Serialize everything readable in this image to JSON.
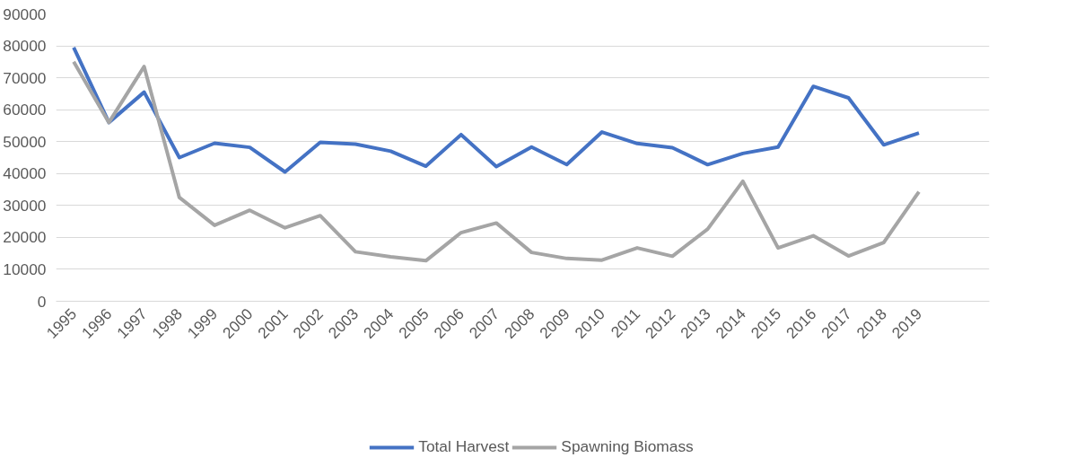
{
  "chart_data": {
    "type": "line",
    "categories": [
      "1995",
      "1996",
      "1997",
      "1998",
      "1999",
      "2000",
      "2001",
      "2002",
      "2003",
      "2004",
      "2005",
      "2006",
      "2007",
      "2008",
      "2009",
      "2010",
      "2011",
      "2012",
      "2013",
      "2014",
      "2015",
      "2016",
      "2017",
      "2018",
      "2019"
    ],
    "series": [
      {
        "name": "Total Harvest",
        "color": "#4472c4",
        "values": [
          79500,
          56000,
          65500,
          45000,
          49500,
          48200,
          40500,
          49800,
          49200,
          47000,
          42300,
          52200,
          42200,
          48300,
          42800,
          53000,
          49400,
          48100,
          42800,
          46300,
          48300,
          67300,
          63700,
          49000,
          52700
        ]
      },
      {
        "name": "Spawning Biomass",
        "color": "#a5a5a5",
        "values": [
          75000,
          56000,
          73500,
          32500,
          23800,
          28500,
          23000,
          26800,
          15500,
          13900,
          12700,
          21500,
          24500,
          15300,
          13400,
          12900,
          16700,
          14100,
          22600,
          37600,
          16700,
          20500,
          14200,
          18400,
          34300
        ]
      }
    ],
    "ylim": [
      0,
      90000
    ],
    "yticks": [
      0,
      10000,
      20000,
      30000,
      40000,
      50000,
      60000,
      70000,
      80000,
      90000
    ],
    "grid": "y",
    "legend": "bottom",
    "marker": "none",
    "line_style": "solid"
  }
}
